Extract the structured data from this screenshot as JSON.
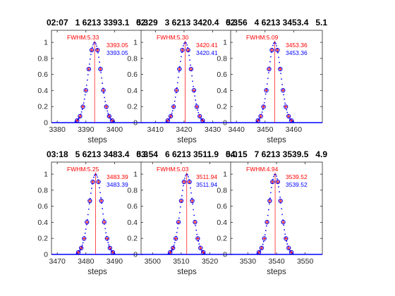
{
  "colors": {
    "data_marker": "#0000ff",
    "fit_marker": "#ff0000",
    "fit_line": "#ff0000",
    "baseline": "#0000ff",
    "axis": "#262626"
  },
  "chart_data": [
    {
      "type": "scatter",
      "title": "02:07   1 6213 3393.1   5.3",
      "xlabel": "steps",
      "ylabel": "",
      "xlim": [
        3378,
        3410
      ],
      "ylim": [
        0,
        1.15
      ],
      "xticks": [
        3380,
        3390,
        3400
      ],
      "yticks": [
        0,
        0.2,
        0.4,
        0.6,
        0.8,
        1
      ],
      "fwhm_label": "FWHM:5.33",
      "peak_fit": "3393.05",
      "peak_data": "3393.05",
      "center": 3393.05,
      "fwhm": 5.33,
      "grid": false,
      "legend": "none"
    },
    {
      "type": "scatter",
      "title": "02:29   3 6213 3420.4   5.3",
      "xlabel": "steps",
      "ylabel": "",
      "xlim": [
        3405,
        3437
      ],
      "ylim": [
        0,
        1.15
      ],
      "xticks": [
        3410,
        3420,
        3430
      ],
      "yticks": [
        0,
        0.2,
        0.4,
        0.6,
        0.8,
        1
      ],
      "fwhm_label": "FWHM:5.30",
      "peak_fit": "3420.41",
      "peak_data": "3420.41",
      "center": 3420.41,
      "fwhm": 5.3,
      "grid": false,
      "legend": "none"
    },
    {
      "type": "scatter",
      "title": "02:56   4 6213 3453.4   5.1",
      "xlabel": "steps",
      "ylabel": "",
      "xlim": [
        3438,
        3470
      ],
      "ylim": [
        0,
        1.15
      ],
      "xticks": [
        3440,
        3450,
        3460
      ],
      "yticks": [
        0,
        0.2,
        0.4,
        0.6,
        0.8,
        1
      ],
      "fwhm_label": "FWHM:5.09",
      "peak_fit": "3453.36",
      "peak_data": "3453.36",
      "center": 3453.36,
      "fwhm": 5.09,
      "grid": false,
      "legend": "none"
    },
    {
      "type": "scatter",
      "title": "03:18   5 6213 3483.4   5.3",
      "xlabel": "steps",
      "ylabel": "",
      "xlim": [
        3468,
        3500
      ],
      "ylim": [
        0,
        1.15
      ],
      "xticks": [
        3470,
        3480,
        3490
      ],
      "yticks": [
        0,
        0.2,
        0.4,
        0.6,
        0.8,
        1
      ],
      "fwhm_label": "FWHM:5.25",
      "peak_fit": "3483.39",
      "peak_data": "3483.39",
      "center": 3483.39,
      "fwhm": 5.25,
      "grid": false,
      "legend": "none"
    },
    {
      "type": "scatter",
      "title": "03:54   6 6213 3511.9   5.0",
      "xlabel": "steps",
      "ylabel": "",
      "xlim": [
        3496,
        3528
      ],
      "ylim": [
        0,
        1.15
      ],
      "xticks": [
        3500,
        3510,
        3520
      ],
      "yticks": [
        0,
        0.2,
        0.4,
        0.6,
        0.8,
        1
      ],
      "fwhm_label": "FWHM:5.03",
      "peak_fit": "3511.94",
      "peak_data": "3511.94",
      "center": 3511.94,
      "fwhm": 5.03,
      "grid": false,
      "legend": "none"
    },
    {
      "type": "scatter",
      "title": "04:15   7 6213 3539.5   4.9",
      "xlabel": "steps",
      "ylabel": "",
      "xlim": [
        3524,
        3556
      ],
      "ylim": [
        0,
        1.15
      ],
      "xticks": [
        3530,
        3540,
        3550
      ],
      "yticks": [
        0,
        0.2,
        0.4,
        0.6,
        0.8,
        1
      ],
      "fwhm_label": "FWHM:4.94",
      "peak_fit": "3539.52",
      "peak_data": "3539.52",
      "center": 3539.52,
      "fwhm": 4.94,
      "grid": false,
      "legend": "none"
    }
  ]
}
